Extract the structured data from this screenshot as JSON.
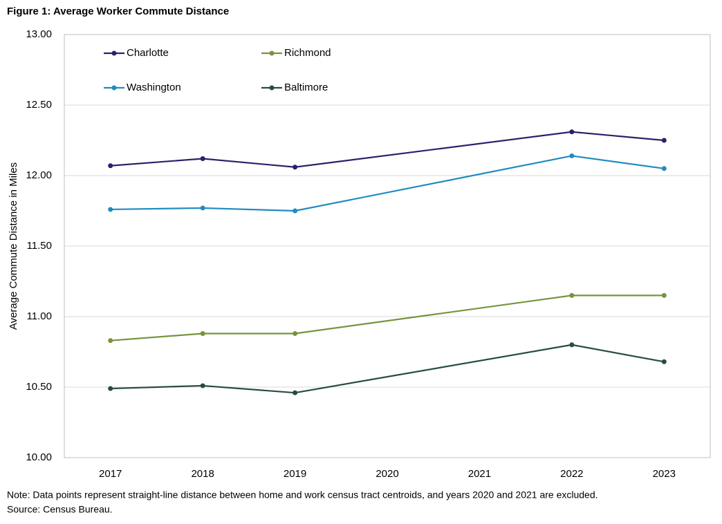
{
  "chart_data": {
    "type": "line",
    "title": "Figure 1: Average Worker Commute Distance",
    "y_label": "Average Commute Distance in Miles",
    "x": [
      2017,
      2018,
      2019,
      2022,
      2023
    ],
    "xlim": [
      2016.5,
      2023.5
    ],
    "xticks": [
      2017,
      2018,
      2019,
      2020,
      2021,
      2022,
      2023
    ],
    "ylim": [
      10,
      13
    ],
    "yticks": [
      {
        "value": 10,
        "label": "10.00"
      },
      {
        "value": 10.5,
        "label": "10.50"
      },
      {
        "value": 11,
        "label": "11.00"
      },
      {
        "value": 11.5,
        "label": "11.50"
      },
      {
        "value": 12,
        "label": "12.00"
      },
      {
        "value": 12.5,
        "label": "12.50"
      },
      {
        "value": 13,
        "label": "13.00"
      }
    ],
    "grid": true,
    "legend": "upper left",
    "series": [
      {
        "name": "Charlotte",
        "color": "#2e1f6b",
        "values": [
          12.07,
          12.12,
          12.06,
          12.31,
          12.25
        ]
      },
      {
        "name": "Richmond",
        "color": "#77933c",
        "values": [
          10.83,
          10.88,
          10.88,
          11.15,
          11.15
        ]
      },
      {
        "name": "Washington",
        "color": "#1f8bbf",
        "values": [
          11.76,
          11.77,
          11.75,
          12.14,
          12.05
        ]
      },
      {
        "name": "Baltimore",
        "color": "#264d3c",
        "values": [
          10.49,
          10.51,
          10.46,
          10.8,
          10.68
        ]
      }
    ],
    "note": "Note: Data points represent straight-line distance between home and work census tract centroids, and years 2020 and 2021 are excluded.",
    "source": "Source: Census Bureau."
  }
}
